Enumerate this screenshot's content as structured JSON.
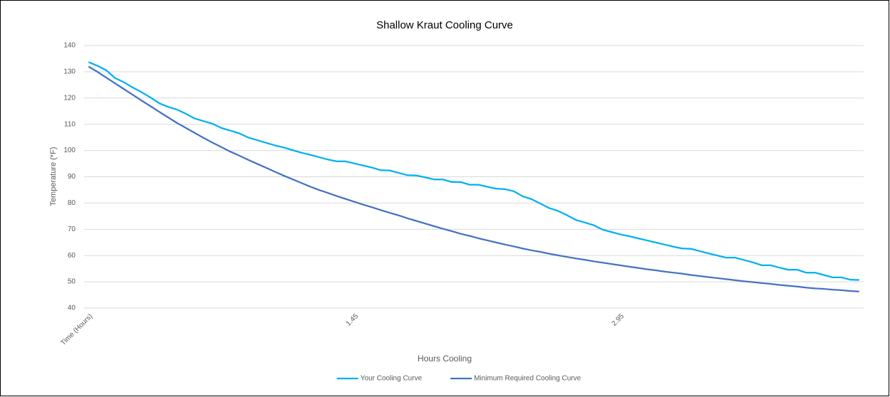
{
  "chart_data": {
    "type": "line",
    "title": "Shallow Kraut Cooling Curve",
    "x_label": "Hours Cooling",
    "y_label": "Temperature (*F)",
    "categories": [
      "Time (Hours)",
      null,
      null,
      null,
      null,
      null,
      null,
      null,
      null,
      null,
      null,
      null,
      null,
      null,
      null,
      null,
      null,
      null,
      null,
      null,
      null,
      null,
      null,
      null,
      null,
      null,
      null,
      null,
      null,
      null,
      "1.45",
      null,
      null,
      null,
      null,
      null,
      null,
      null,
      null,
      null,
      null,
      null,
      null,
      null,
      null,
      null,
      null,
      null,
      null,
      null,
      null,
      null,
      null,
      null,
      null,
      null,
      null,
      null,
      null,
      null,
      "2.95",
      null,
      null,
      null,
      null,
      null,
      null,
      null,
      null,
      null,
      null,
      null,
      null,
      null,
      null,
      null,
      null,
      null,
      null,
      null,
      null,
      null,
      null,
      null,
      null,
      null,
      null,
      null
    ],
    "series": [
      {
        "name": "Your Cooling Curve",
        "color": "#00b0f0",
        "values": [
          133.7,
          132.3,
          130.6,
          127.6,
          126,
          124,
          122.2,
          120.2,
          118,
          116.6,
          115.6,
          114,
          112.2,
          111.2,
          110.2,
          108.6,
          107.6,
          106.6,
          105,
          104,
          103,
          102,
          101.2,
          100.2,
          99.2,
          98.4,
          97.5,
          96.6,
          95.9,
          95.9,
          95.1,
          94.3,
          93.5,
          92.5,
          92.4,
          91.5,
          90.6,
          90.5,
          89.8,
          89,
          89,
          88,
          88,
          87,
          87,
          86.2,
          85.5,
          85.3,
          84.5,
          82.6,
          81.5,
          79.8,
          78.1,
          77,
          75.4,
          73.6,
          72.6,
          71.6,
          69.9,
          69,
          68.1,
          67.4,
          66.6,
          65.8,
          65,
          64.2,
          63.4,
          62.7,
          62.6,
          61.7,
          60.8,
          60,
          59.2,
          59.2,
          58.3,
          57.4,
          56.3,
          56.3,
          55.4,
          54.6,
          54.6,
          53.5,
          53.5,
          52.6,
          51.7,
          51.7,
          50.8,
          50.7
        ]
      },
      {
        "name": "Minimum Required Cooling Curve",
        "color": "#4472c4",
        "values": [
          132,
          130,
          127.8,
          125.6,
          123.4,
          121.2,
          119,
          116.9,
          114.7,
          112.6,
          110.5,
          108.6,
          106.7,
          104.8,
          103,
          101.3,
          99.6,
          98.1,
          96.5,
          95,
          93.5,
          92,
          90.5,
          89.1,
          87.7,
          86.3,
          85,
          83.9,
          82.7,
          81.6,
          80.5,
          79.4,
          78.4,
          77.3,
          76.3,
          75.3,
          74.2,
          73.2,
          72.2,
          71.2,
          70.2,
          69.3,
          68.3,
          67.5,
          66.6,
          65.8,
          65,
          64.2,
          63.5,
          62.7,
          62,
          61.4,
          60.7,
          60.1,
          59.5,
          58.9,
          58.4,
          57.8,
          57.3,
          56.8,
          56.3,
          55.8,
          55.3,
          54.8,
          54.4,
          53.9,
          53.5,
          53.1,
          52.6,
          52.2,
          51.8,
          51.4,
          51,
          50.6,
          50.2,
          49.9,
          49.5,
          49.2,
          48.8,
          48.5,
          48.2,
          47.8,
          47.5,
          47.3,
          47,
          46.8,
          46.5,
          46.3
        ]
      }
    ],
    "ylim": [
      40,
      140
    ],
    "yticks": [
      40,
      50,
      60,
      70,
      80,
      90,
      100,
      110,
      120,
      130,
      140
    ],
    "grid": true,
    "legend": "bottom"
  }
}
